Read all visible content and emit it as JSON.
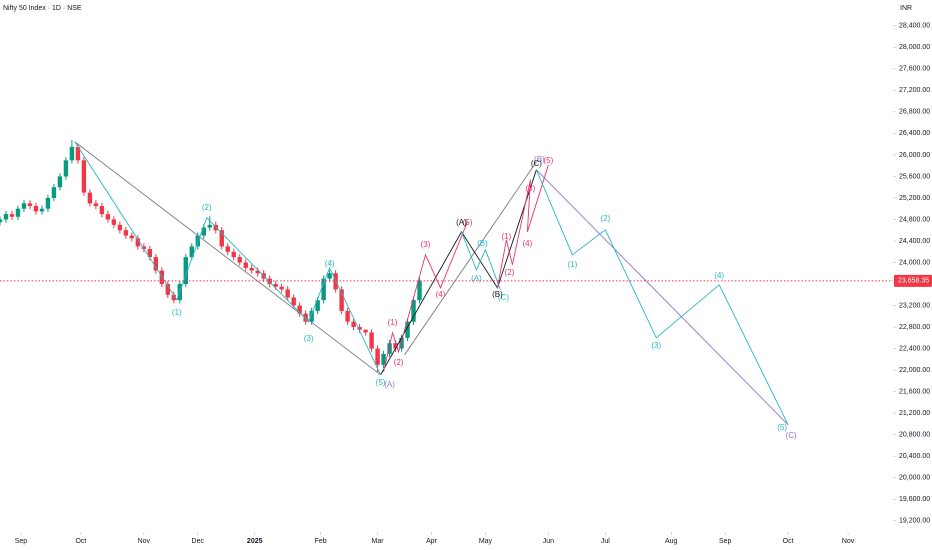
{
  "chart_data": {
    "type": "candlestick",
    "title": "Nifty 50 Index · 1D · NSE",
    "currency": "INR",
    "xlim": [
      0,
      298
    ],
    "xticks": [
      {
        "value": 7,
        "label": "Sep"
      },
      {
        "value": 27,
        "label": "Oct"
      },
      {
        "value": 48,
        "label": "Nov"
      },
      {
        "value": 66,
        "label": "Dec"
      },
      {
        "value": 85,
        "label": "2025"
      },
      {
        "value": 107,
        "label": "Feb"
      },
      {
        "value": 126,
        "label": "Mar"
      },
      {
        "value": 144,
        "label": "Apr"
      },
      {
        "value": 162,
        "label": "May"
      },
      {
        "value": 183,
        "label": "Jun"
      },
      {
        "value": 202,
        "label": "Jul"
      },
      {
        "value": 224,
        "label": "Aug"
      },
      {
        "value": 242,
        "label": "Sep"
      },
      {
        "value": 263,
        "label": "Oct"
      },
      {
        "value": 283,
        "label": "Nov"
      }
    ],
    "ylim": [
      18990,
      28880
    ],
    "yticks": [
      {
        "value": 28400,
        "label": "28,400.00"
      },
      {
        "value": 28000,
        "label": "28,000.00"
      },
      {
        "value": 27600,
        "label": "27,600.00"
      },
      {
        "value": 27200,
        "label": "27,200.00"
      },
      {
        "value": 26800,
        "label": "26,800.00"
      },
      {
        "value": 26400,
        "label": "26,400.00"
      },
      {
        "value": 26000,
        "label": "26,000.00"
      },
      {
        "value": 25600,
        "label": "25,600.00"
      },
      {
        "value": 25200,
        "label": "25,200.00"
      },
      {
        "value": 24800,
        "label": "24,800.00"
      },
      {
        "value": 24400,
        "label": "24,400.00"
      },
      {
        "value": 24000,
        "label": "24,000.00"
      },
      {
        "value": 23200,
        "label": "23,200.00"
      },
      {
        "value": 22800,
        "label": "22,800.00"
      },
      {
        "value": 22400,
        "label": "22,400.00"
      },
      {
        "value": 22000,
        "label": "22,000.00"
      },
      {
        "value": 21600,
        "label": "21,600.00"
      },
      {
        "value": 21200,
        "label": "21,200.00"
      },
      {
        "value": 20800,
        "label": "20,800.00"
      },
      {
        "value": 20400,
        "label": "20,400.00"
      },
      {
        "value": 20000,
        "label": "20,000.00"
      },
      {
        "value": 19600,
        "label": "19,600.00"
      },
      {
        "value": 19200,
        "label": "19,200.00"
      }
    ],
    "last_price": {
      "value": 23658.35,
      "label": "23,658.35",
      "color": "#f23645"
    },
    "up_color": "#089981",
    "down_color": "#f23645",
    "candles": {
      "x": [
        0,
        2,
        4,
        6,
        8,
        10,
        12,
        14,
        16,
        18,
        20,
        22,
        24,
        26,
        28,
        30,
        32,
        34,
        36,
        38,
        40,
        42,
        44,
        46,
        48,
        50,
        52,
        54,
        56,
        58,
        60,
        62,
        64,
        66,
        68,
        70,
        72,
        74,
        76,
        78,
        80,
        82,
        84,
        86,
        88,
        90,
        92,
        94,
        96,
        98,
        100,
        102,
        104,
        106,
        108,
        110,
        112,
        114,
        116,
        118,
        120,
        122,
        124,
        126,
        128,
        130,
        132,
        134,
        136,
        138,
        140
      ],
      "open": [
        24750,
        24800,
        24900,
        24850,
        25000,
        25100,
        25050,
        24950,
        25000,
        25200,
        25400,
        25600,
        25900,
        26150,
        25900,
        25300,
        25100,
        25050,
        24900,
        24800,
        24700,
        24600,
        24500,
        24450,
        24300,
        24250,
        24100,
        23850,
        23600,
        23400,
        23300,
        23600,
        24100,
        24300,
        24500,
        24650,
        24700,
        24600,
        24300,
        24200,
        24100,
        24000,
        23900,
        23850,
        23800,
        23700,
        23600,
        23550,
        23500,
        23350,
        23200,
        23050,
        22900,
        23100,
        23300,
        23700,
        23800,
        23500,
        23100,
        22900,
        22800,
        22750,
        22700,
        22400,
        22100,
        22300,
        22500,
        22400,
        22600,
        22900,
        23300
      ],
      "high": [
        24860,
        24960,
        24960,
        25060,
        25160,
        25160,
        25110,
        25060,
        25260,
        25460,
        25660,
        25960,
        26277,
        26210,
        25960,
        25360,
        25160,
        25110,
        24960,
        24860,
        24760,
        24660,
        24560,
        24510,
        24360,
        24310,
        24160,
        23910,
        23660,
        23460,
        23660,
        24160,
        24360,
        24560,
        24710,
        24860,
        24760,
        24660,
        24360,
        24260,
        24160,
        24060,
        23960,
        23910,
        23860,
        23760,
        23660,
        23610,
        23560,
        23410,
        23260,
        23110,
        23160,
        23360,
        23760,
        23860,
        23860,
        23560,
        23160,
        22960,
        22860,
        22760,
        22760,
        22460,
        22360,
        22560,
        22560,
        22660,
        22960,
        23360,
        23720
      ],
      "low": [
        24690,
        24740,
        24790,
        24790,
        24940,
        24990,
        24890,
        24890,
        24940,
        25140,
        25340,
        25540,
        25840,
        25840,
        25240,
        25040,
        24990,
        24840,
        24740,
        24640,
        24540,
        24440,
        24390,
        24240,
        24190,
        24040,
        23790,
        23540,
        23340,
        23240,
        23240,
        23540,
        24040,
        24240,
        24440,
        24590,
        24540,
        24240,
        24140,
        24040,
        23940,
        23840,
        23790,
        23740,
        23640,
        23540,
        23490,
        23440,
        23290,
        23140,
        22990,
        22840,
        22840,
        23040,
        23240,
        23640,
        23440,
        23040,
        22840,
        22740,
        22690,
        22640,
        22340,
        21960,
        22040,
        22240,
        22340,
        22340,
        22540,
        22840,
        23240
      ],
      "close": [
        24800,
        24900,
        24850,
        25000,
        25100,
        25050,
        24950,
        25000,
        25200,
        25400,
        25600,
        25900,
        26150,
        25900,
        25300,
        25100,
        25050,
        24900,
        24800,
        24700,
        24600,
        24500,
        24450,
        24300,
        24250,
        24100,
        23850,
        23600,
        23400,
        23300,
        23600,
        24100,
        24300,
        24500,
        24650,
        24700,
        24600,
        24300,
        24200,
        24100,
        24000,
        23900,
        23850,
        23800,
        23700,
        23600,
        23550,
        23500,
        23350,
        23200,
        23050,
        22900,
        23100,
        23300,
        23700,
        23800,
        23500,
        23100,
        22900,
        22800,
        22750,
        22700,
        22400,
        22100,
        22300,
        22500,
        22400,
        22600,
        22900,
        23300,
        23658.35
      ]
    },
    "drawings": [
      {
        "color": "#787b86",
        "x": [
          25,
          127
        ],
        "y": [
          26243,
          21912
        ]
      },
      {
        "color": "#787b86",
        "x": [
          135,
          179
        ],
        "y": [
          22284,
          25872
        ]
      },
      {
        "color": "#131722",
        "x": [
          127,
          154,
          166,
          179
        ],
        "y": [
          21912,
          24570,
          23529,
          25723
        ]
      },
      {
        "color": "#29b6c6",
        "x": [
          25,
          59,
          69,
          103,
          110,
          127
        ],
        "y": [
          26243,
          23307,
          24831,
          22897,
          23901,
          21912
        ]
      },
      {
        "color": "#e8336e",
        "x": [
          128,
          131,
          133,
          142,
          147,
          156
        ],
        "y": [
          21968,
          22693,
          22340,
          24143,
          23529,
          24756
        ]
      },
      {
        "color": "#29b6c6",
        "x": [
          154,
          159,
          162,
          167
        ],
        "y": [
          24570,
          23864,
          24236,
          23492
        ]
      },
      {
        "color": "#e8336e",
        "x": [
          166,
          169,
          171,
          177,
          176,
          183
        ],
        "y": [
          23529,
          24422,
          23957,
          25537,
          24570,
          25816
        ]
      },
      {
        "color": "#9575cd",
        "x": [
          179,
          263
        ],
        "y": [
          25723,
          20983
        ]
      },
      {
        "color": "#29b6c6",
        "x": [
          179,
          191,
          202,
          219,
          240,
          263
        ],
        "y": [
          25723,
          24143,
          24608,
          22600,
          23585,
          20983
        ]
      }
    ],
    "wave_labels": [
      {
        "text": "(1)",
        "color": "#29b6c6",
        "x": 59,
        "y": 23065
      },
      {
        "text": "(2)",
        "color": "#29b6c6",
        "x": 69,
        "y": 25017
      },
      {
        "text": "(3)",
        "color": "#29b6c6",
        "x": 103,
        "y": 22581
      },
      {
        "text": "(4)",
        "color": "#29b6c6",
        "x": 110,
        "y": 23976
      },
      {
        "text": "(5)",
        "color": "#29b6c6",
        "x": 127,
        "y": 21763
      },
      {
        "text": "(A)",
        "color": "#9575cd",
        "x": 130,
        "y": 21726
      },
      {
        "text": "(1)",
        "color": "#e8336e",
        "x": 131,
        "y": 22879
      },
      {
        "text": "(2)",
        "color": "#e8336e",
        "x": 133,
        "y": 22135
      },
      {
        "text": "(3)",
        "color": "#e8336e",
        "x": 142,
        "y": 24329
      },
      {
        "text": "(4)",
        "color": "#e8336e",
        "x": 147,
        "y": 23399
      },
      {
        "text": "(5)",
        "color": "#e8336e",
        "x": 156,
        "y": 24738
      },
      {
        "text": "(A)",
        "color": "#131722",
        "x": 154,
        "y": 24738
      },
      {
        "text": "(A)",
        "color": "#29b6c6",
        "x": 159,
        "y": 23697
      },
      {
        "text": "(B)",
        "color": "#29b6c6",
        "x": 161,
        "y": 24348
      },
      {
        "text": "(C)",
        "color": "#29b6c6",
        "x": 168,
        "y": 23343
      },
      {
        "text": "(B)",
        "color": "#131722",
        "x": 166,
        "y": 23399
      },
      {
        "text": "(1)",
        "color": "#e8336e",
        "x": 169,
        "y": 24478
      },
      {
        "text": "(2)",
        "color": "#e8336e",
        "x": 170,
        "y": 23808
      },
      {
        "text": "(3)",
        "color": "#e8336e",
        "x": 177,
        "y": 25370
      },
      {
        "text": "(4)",
        "color": "#e8336e",
        "x": 176,
        "y": 24348
      },
      {
        "text": "(B)",
        "color": "#9575cd",
        "x": 180,
        "y": 25910
      },
      {
        "text": "(5)",
        "color": "#e8336e",
        "x": 183,
        "y": 25890
      },
      {
        "text": "(C)",
        "color": "#131722",
        "x": 179,
        "y": 25835
      },
      {
        "text": "(1)",
        "color": "#29b6c6",
        "x": 191,
        "y": 23957
      },
      {
        "text": "(2)",
        "color": "#29b6c6",
        "x": 202,
        "y": 24812
      },
      {
        "text": "(3)",
        "color": "#29b6c6",
        "x": 219,
        "y": 22451
      },
      {
        "text": "(4)",
        "color": "#29b6c6",
        "x": 240,
        "y": 23752
      },
      {
        "text": "(5)",
        "color": "#29b6c6",
        "x": 261,
        "y": 20927
      },
      {
        "text": "(C)",
        "color": "#9575cd",
        "x": 264,
        "y": 20778
      }
    ]
  }
}
